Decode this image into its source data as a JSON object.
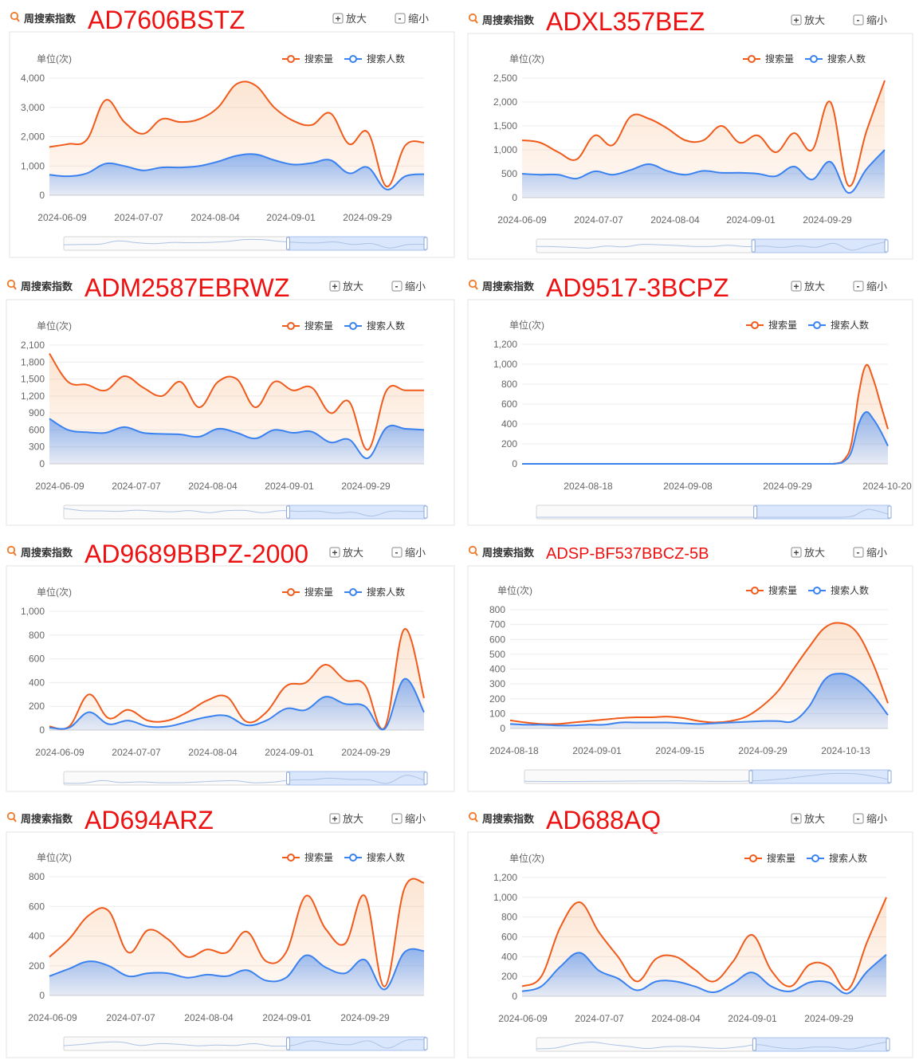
{
  "header": {
    "title": "周搜索指数",
    "zoom_in_label": "放大",
    "zoom_out_label": "缩小"
  },
  "chart_data": [
    {
      "part": "AD7606BSTZ",
      "type": "area",
      "unit_label": "单位(次)",
      "legend": [
        "搜索量",
        "搜索人数"
      ],
      "x_tick_labels": [
        "2024-06-09",
        "2024-07-07",
        "2024-08-04",
        "2024-09-01",
        "2024-09-29"
      ],
      "y_ticks": [
        0,
        1000,
        2000,
        3000,
        4000
      ],
      "y_tick_labels": [
        "0",
        "1,000",
        "2,000",
        "3,000",
        "4,000"
      ],
      "ylim": [
        0,
        4000
      ],
      "series": [
        {
          "name": "搜索量",
          "values": [
            1650,
            1750,
            1900,
            3250,
            2500,
            2100,
            2600,
            2500,
            2600,
            3000,
            3800,
            3750,
            3000,
            2550,
            2400,
            2800,
            1750,
            2150,
            300,
            1700,
            1800
          ]
        },
        {
          "name": "搜索人数",
          "values": [
            700,
            650,
            750,
            1080,
            1000,
            850,
            950,
            950,
            1000,
            1150,
            1350,
            1400,
            1200,
            1050,
            1100,
            1200,
            750,
            950,
            200,
            650,
            720
          ]
        }
      ]
    },
    {
      "part": "ADXL357BEZ",
      "type": "area",
      "unit_label": "单位(次)",
      "legend": [
        "搜索量",
        "搜索人数"
      ],
      "x_tick_labels": [
        "2024-06-09",
        "2024-07-07",
        "2024-08-04",
        "2024-09-01",
        "2024-09-29"
      ],
      "y_ticks": [
        0,
        500,
        1000,
        1500,
        2000,
        2500
      ],
      "y_tick_labels": [
        "0",
        "500",
        "1,000",
        "1,500",
        "2,000",
        "2,500"
      ],
      "ylim": [
        0,
        2500
      ],
      "series": [
        {
          "name": "搜索量",
          "values": [
            1200,
            1150,
            950,
            800,
            1300,
            1100,
            1700,
            1650,
            1450,
            1200,
            1200,
            1500,
            1150,
            1300,
            950,
            1350,
            1000,
            2000,
            250,
            1400,
            2450
          ]
        },
        {
          "name": "搜索人数",
          "values": [
            500,
            480,
            480,
            400,
            550,
            480,
            580,
            700,
            560,
            480,
            560,
            520,
            520,
            500,
            450,
            650,
            380,
            750,
            100,
            600,
            1000
          ]
        }
      ]
    },
    {
      "part": "ADM2587EBRWZ",
      "type": "area",
      "unit_label": "单位(次)",
      "legend": [
        "搜索量",
        "搜索人数"
      ],
      "x_tick_labels": [
        "2024-06-09",
        "2024-07-07",
        "2024-08-04",
        "2024-09-01",
        "2024-09-29"
      ],
      "y_ticks": [
        0,
        300,
        600,
        900,
        1200,
        1500,
        1800,
        2100
      ],
      "y_tick_labels": [
        "0",
        "300",
        "600",
        "900",
        "1,200",
        "1,500",
        "1,800",
        "2,100"
      ],
      "ylim": [
        0,
        2100
      ],
      "series": [
        {
          "name": "搜索量",
          "values": [
            1950,
            1450,
            1400,
            1300,
            1550,
            1350,
            1200,
            1450,
            1000,
            1450,
            1500,
            1000,
            1450,
            1300,
            1350,
            900,
            1100,
            250,
            1300,
            1300,
            1300
          ]
        },
        {
          "name": "搜索人数",
          "values": [
            800,
            600,
            560,
            550,
            650,
            550,
            530,
            520,
            480,
            620,
            550,
            450,
            600,
            550,
            570,
            380,
            430,
            100,
            640,
            620,
            600
          ]
        }
      ]
    },
    {
      "part": "AD9517-3BCPZ",
      "type": "area",
      "unit_label": "单位(次)",
      "legend": [
        "搜索量",
        "搜索人数"
      ],
      "x_tick_labels": [
        "2024-08-18",
        "2024-09-08",
        "2024-09-29",
        "2024-10-20"
      ],
      "y_ticks": [
        0,
        200,
        400,
        600,
        800,
        1000,
        1200
      ],
      "y_tick_labels": [
        "0",
        "200",
        "400",
        "600",
        "800",
        "1,000",
        "1,200"
      ],
      "ylim": [
        0,
        1200
      ],
      "series": [
        {
          "name": "搜索量",
          "values": [
            0,
            0,
            0,
            0,
            0,
            0,
            0,
            0,
            0,
            0,
            0,
            0,
            0,
            0,
            0,
            0,
            0,
            0,
            0,
            0,
            0,
            0,
            0,
            0,
            0,
            0,
            0,
            0,
            0,
            0,
            0,
            0,
            0,
            0,
            0,
            0,
            0,
            0,
            0,
            0,
            0,
            0,
            0,
            5,
            40,
            200,
            700,
            990,
            850,
            600,
            350
          ]
        },
        {
          "name": "搜索人数",
          "values": [
            0,
            0,
            0,
            0,
            0,
            0,
            0,
            0,
            0,
            0,
            0,
            0,
            0,
            0,
            0,
            0,
            0,
            0,
            0,
            0,
            0,
            0,
            0,
            0,
            0,
            0,
            0,
            0,
            0,
            0,
            0,
            0,
            0,
            0,
            0,
            0,
            0,
            0,
            0,
            0,
            0,
            0,
            0,
            3,
            25,
            120,
            400,
            520,
            450,
            330,
            180
          ]
        }
      ]
    },
    {
      "part": "AD9689BBPZ-2000",
      "type": "area",
      "unit_label": "单位(次)",
      "legend": [
        "搜索量",
        "搜索人数"
      ],
      "x_tick_labels": [
        "2024-06-09",
        "2024-07-07",
        "2024-08-04",
        "2024-09-01",
        "2024-09-29"
      ],
      "y_ticks": [
        0,
        200,
        400,
        600,
        800,
        1000
      ],
      "y_tick_labels": [
        "0",
        "200",
        "400",
        "600",
        "800",
        "1,000"
      ],
      "ylim": [
        0,
        1000
      ],
      "series": [
        {
          "name": "搜索量",
          "values": [
            30,
            30,
            300,
            100,
            170,
            80,
            80,
            150,
            250,
            280,
            70,
            150,
            370,
            400,
            550,
            420,
            380,
            20,
            850,
            270
          ]
        },
        {
          "name": "搜索人数",
          "values": [
            20,
            20,
            150,
            50,
            80,
            30,
            30,
            70,
            110,
            120,
            40,
            80,
            180,
            170,
            280,
            220,
            200,
            10,
            430,
            150
          ]
        }
      ]
    },
    {
      "part": "ADSP-BF537BBCZ-5B",
      "type": "area",
      "unit_label": "单位(次)",
      "legend": [
        "搜索量",
        "搜索人数"
      ],
      "x_tick_labels": [
        "2024-08-18",
        "2024-09-01",
        "2024-09-15",
        "2024-09-29",
        "2024-10-13"
      ],
      "y_ticks": [
        0,
        100,
        200,
        300,
        400,
        500,
        600,
        700,
        800
      ],
      "y_tick_labels": [
        "0",
        "100",
        "200",
        "300",
        "400",
        "500",
        "600",
        "700",
        "800"
      ],
      "ylim": [
        0,
        800
      ],
      "series": [
        {
          "name": "搜索量",
          "values": [
            55,
            40,
            30,
            30,
            40,
            50,
            60,
            70,
            75,
            75,
            80,
            70,
            50,
            40,
            50,
            80,
            150,
            250,
            400,
            550,
            680,
            710,
            650,
            450,
            170
          ]
        },
        {
          "name": "搜索人数",
          "values": [
            30,
            25,
            25,
            20,
            20,
            25,
            25,
            40,
            40,
            40,
            40,
            35,
            30,
            35,
            40,
            45,
            50,
            50,
            50,
            150,
            330,
            370,
            330,
            230,
            90
          ]
        }
      ]
    },
    {
      "part": "AD694ARZ",
      "type": "area",
      "unit_label": "单位(次)",
      "legend": [
        "搜索量",
        "搜索人数"
      ],
      "x_tick_labels": [
        "2024-06-09",
        "2024-07-07",
        "2024-08-04",
        "2024-09-01",
        "2024-09-29"
      ],
      "y_ticks": [
        0,
        200,
        400,
        600,
        800
      ],
      "y_tick_labels": [
        "0",
        "200",
        "400",
        "600",
        "800"
      ],
      "ylim": [
        0,
        800
      ],
      "series": [
        {
          "name": "搜索量",
          "values": [
            260,
            380,
            540,
            570,
            290,
            440,
            380,
            260,
            310,
            290,
            430,
            230,
            290,
            670,
            450,
            350,
            670,
            60,
            720,
            760
          ]
        },
        {
          "name": "搜索人数",
          "values": [
            130,
            180,
            230,
            200,
            130,
            150,
            150,
            120,
            140,
            130,
            170,
            100,
            120,
            270,
            190,
            150,
            240,
            40,
            290,
            300
          ]
        }
      ]
    },
    {
      "part": "AD688AQ",
      "type": "area",
      "unit_label": "单位(次)",
      "legend": [
        "搜索量",
        "搜索人数"
      ],
      "x_tick_labels": [
        "2024-06-09",
        "2024-07-07",
        "2024-08-04",
        "2024-09-01",
        "2024-09-29"
      ],
      "y_ticks": [
        0,
        200,
        400,
        600,
        800,
        1000,
        1200
      ],
      "y_tick_labels": [
        "0",
        "200",
        "400",
        "600",
        "800",
        "1,000",
        "1,200"
      ],
      "ylim": [
        0,
        1200
      ],
      "series": [
        {
          "name": "搜索量",
          "values": [
            100,
            200,
            700,
            950,
            650,
            400,
            150,
            380,
            400,
            270,
            150,
            350,
            620,
            260,
            100,
            320,
            300,
            70,
            550,
            1000
          ]
        },
        {
          "name": "搜索人数",
          "values": [
            50,
            100,
            300,
            440,
            260,
            180,
            60,
            150,
            150,
            100,
            40,
            130,
            240,
            100,
            50,
            140,
            140,
            30,
            250,
            420
          ]
        }
      ]
    }
  ],
  "colors": {
    "search_volume": "#f05a1a",
    "searchers": "#3a82f0"
  }
}
